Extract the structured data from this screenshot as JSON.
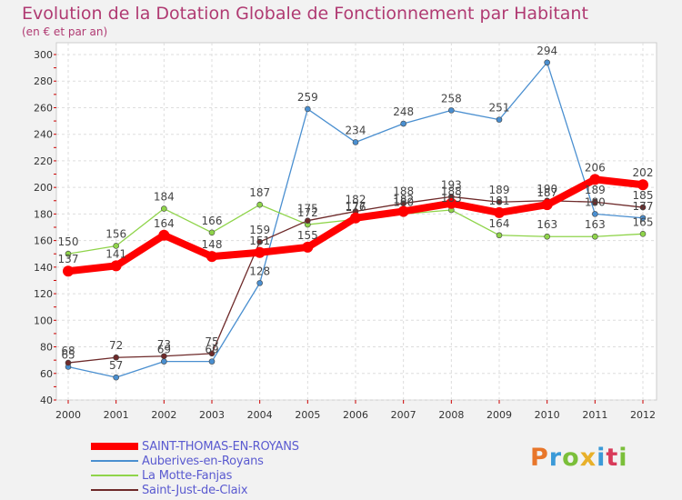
{
  "chart_data": {
    "type": "line",
    "title": "Evolution de la Dotation Globale de Fonctionnement par Habitant",
    "subtitle": "(en € et par an)",
    "xlabel": "",
    "ylabel": "",
    "ylim": [
      40,
      300
    ],
    "yticks": [
      40,
      60,
      80,
      100,
      120,
      140,
      160,
      180,
      200,
      220,
      240,
      260,
      280,
      300
    ],
    "grid": true,
    "legend_position": "bottom-left",
    "x": [
      "2000",
      "2001",
      "2002",
      "2003",
      "2004",
      "2005",
      "2006",
      "2007",
      "2008",
      "2009",
      "2010",
      "2011",
      "2012"
    ],
    "series": [
      {
        "name": "Auberives-en-Royans",
        "color": "#4a8fd0",
        "values": [
          65,
          57,
          69,
          69,
          128,
          259,
          234,
          248,
          258,
          251,
          294,
          180,
          177
        ]
      },
      {
        "name": "La Motte-Fanjas",
        "color": "#8fd44a",
        "values": [
          150,
          156,
          184,
          166,
          187,
          172,
          176,
          180,
          183,
          164,
          163,
          163,
          165
        ]
      },
      {
        "name": "Saint-Just-de-Claix",
        "color": "#6e2a2a",
        "values": [
          68,
          72,
          73,
          75,
          159,
          175,
          182,
          188,
          193,
          189,
          190,
          189,
          185
        ]
      },
      {
        "name": "SAINT-THOMAS-EN-ROYANS",
        "color": "#ff0000",
        "values": [
          137,
          141,
          164,
          148,
          151,
          155,
          177,
          182,
          188,
          181,
          187,
          206,
          202
        ]
      }
    ]
  },
  "legend": [
    {
      "name": "SAINT-THOMAS-EN-ROYANS",
      "color": "#ff0000"
    },
    {
      "name": "Auberives-en-Royans",
      "color": "#4a8fd0"
    },
    {
      "name": "La Motte-Fanjas",
      "color": "#8fd44a"
    },
    {
      "name": "Saint-Just-de-Claix",
      "color": "#6e2a2a"
    }
  ],
  "logo": {
    "text": "Proxiti",
    "letters": [
      "P",
      "r",
      "o",
      "x",
      "i",
      "t",
      "i"
    ]
  }
}
